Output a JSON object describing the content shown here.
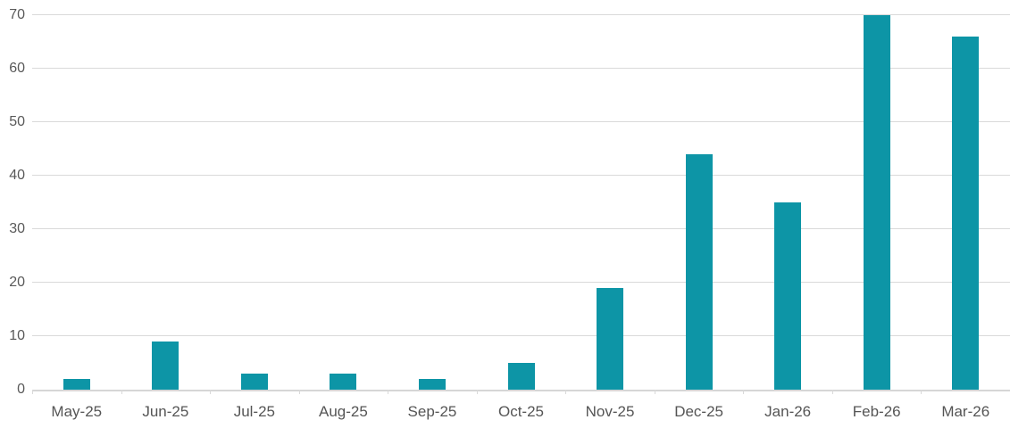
{
  "chart_data": {
    "type": "bar",
    "title": "",
    "xlabel": "",
    "ylabel": "",
    "categories": [
      "May-25",
      "Jun-25",
      "Jul-25",
      "Aug-25",
      "Sep-25",
      "Oct-25",
      "Nov-25",
      "Dec-25",
      "Jan-26",
      "Feb-26",
      "Mar-26"
    ],
    "values": [
      2,
      9,
      3,
      3,
      2,
      5,
      19,
      44,
      35,
      70,
      66
    ],
    "ylim": [
      0,
      70
    ],
    "yticks": [
      0,
      10,
      20,
      30,
      40,
      50,
      60,
      70
    ],
    "grid": "horizontal-only",
    "legend_position": "none",
    "colors": {
      "bar": "#0d95a6",
      "gridline": "#d9d9d9",
      "axis_line": "#d6d6d6",
      "tick_mark": "#d9d9d9",
      "y_label_text": "#595959",
      "x_label_text": "#555555",
      "background": "#ffffff"
    }
  }
}
